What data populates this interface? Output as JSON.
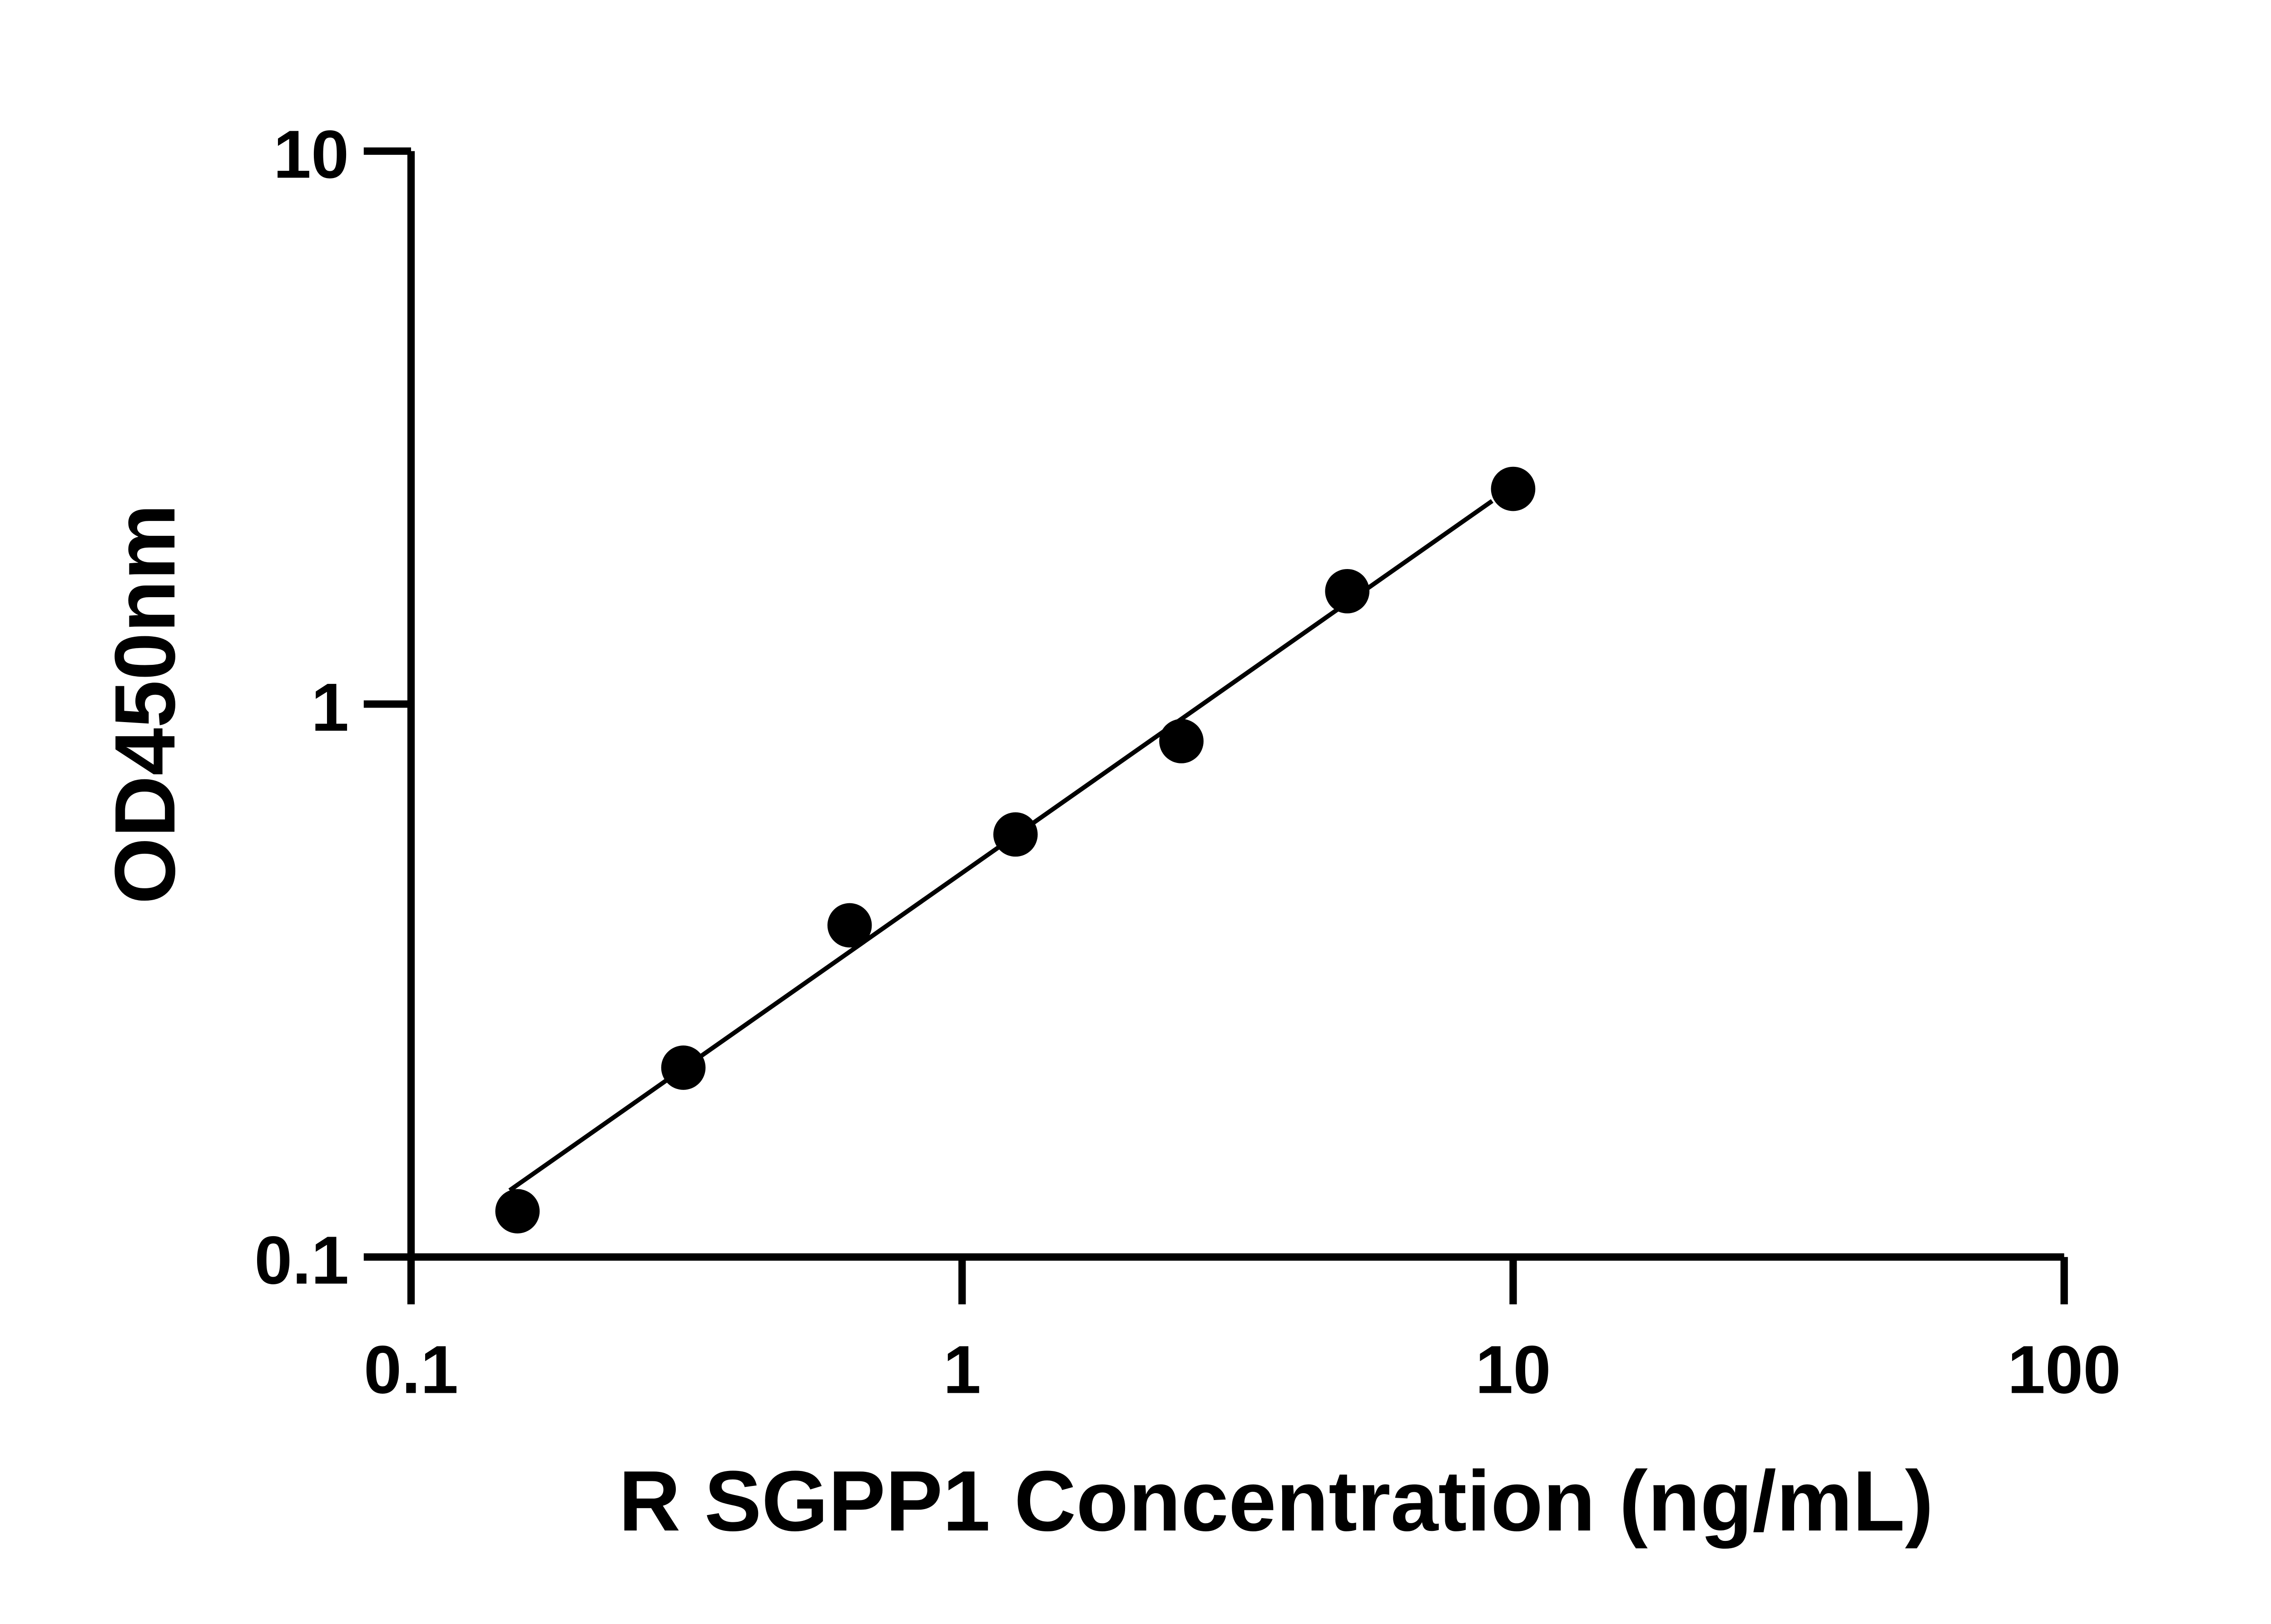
{
  "chart_data": {
    "type": "scatter",
    "xlabel": "R SGPP1 Concentration (ng/mL)",
    "ylabel": "OD450nm",
    "x_scale": "log",
    "y_scale": "log",
    "xlim": [
      0.1,
      100
    ],
    "ylim": [
      0.1,
      10
    ],
    "x_ticks": [
      "0.1",
      "1",
      "10",
      "100"
    ],
    "y_ticks": [
      "0.1",
      "1",
      "10"
    ],
    "grid": false,
    "colors": {
      "points": "#000000",
      "line": "#000000"
    },
    "series": [
      {
        "x": [
          0.156,
          0.312,
          0.625,
          1.25,
          2.5,
          5,
          10
        ],
        "y": [
          0.121,
          0.22,
          0.398,
          0.581,
          0.857,
          1.6,
          2.45
        ]
      }
    ],
    "fit_line": {
      "x": [
        0.151,
        9.16
      ],
      "y": [
        0.132,
        2.33
      ]
    }
  }
}
